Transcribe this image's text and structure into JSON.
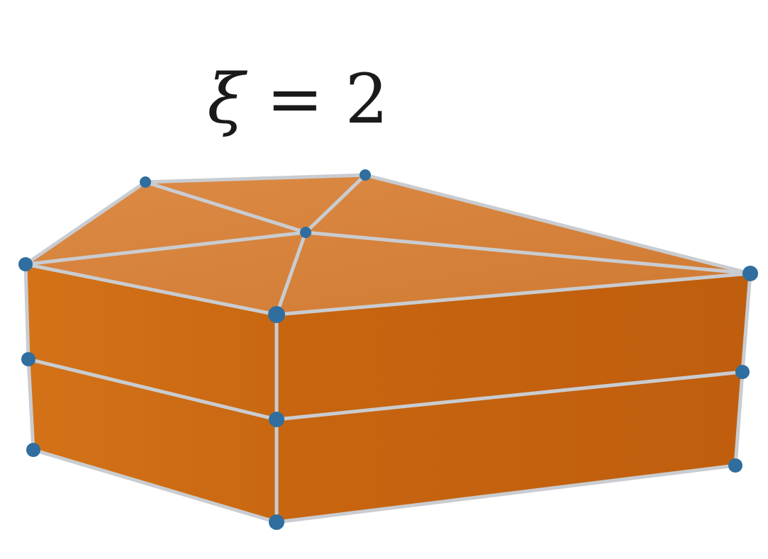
{
  "label": {
    "symbol": "ξ",
    "equals": " = ",
    "value": "2"
  },
  "colors": {
    "top_face": "#d8833b",
    "side_face_left": "#cf6d15",
    "side_face_right": "#c5620f",
    "edge": "#c9ccd0",
    "vertex": "#2f6e9e"
  }
}
